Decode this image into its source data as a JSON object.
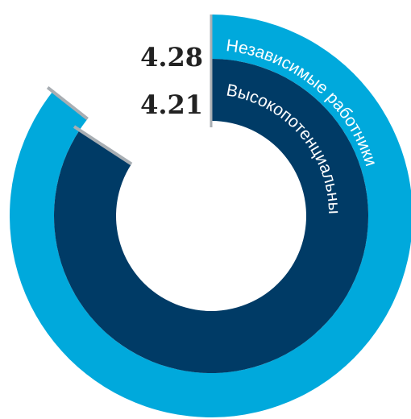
{
  "chart_data": {
    "type": "radial-bar",
    "scale_max": 5,
    "series": [
      {
        "name": "Независимые работники",
        "value": 4.28,
        "color": "#00a9dc"
      },
      {
        "name": "Высокопотенциальные",
        "value": 4.21,
        "color": "#003b66"
      }
    ],
    "label_color": "#ffffff",
    "value_label_color": "#222222",
    "tick_color": "#a8aeb3"
  }
}
